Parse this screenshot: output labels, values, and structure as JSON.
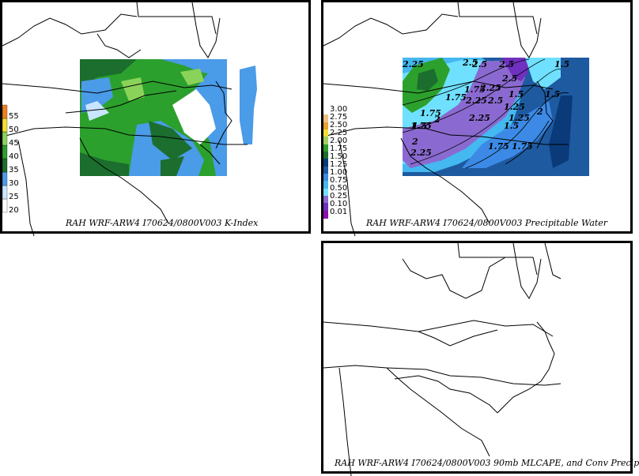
{
  "panels": [
    {
      "caption": "RAH WRF-ARW4 I70624/0800V003  K-Index",
      "legend": {
        "colors": [
          "#ffffff",
          "#c8e6ff",
          "#4a9be8",
          "#1b6e2d",
          "#2ca02c",
          "#8ad35a",
          "#f0e030",
          "#f08020"
        ],
        "labels": [
          "20",
          "25",
          "30",
          "35",
          "40",
          "45",
          "50",
          "55"
        ]
      }
    },
    {
      "caption": "RAH WRF-ARW4 I70624/0800V003  Precipitable Water",
      "legend": {
        "colors": [
          "#ffffff",
          "#f0c080",
          "#e8a030",
          "#f0e030",
          "#a0d060",
          "#2ca02c",
          "#1b6e2d",
          "#0a3a7a",
          "#1e5aa0",
          "#3c8ae6",
          "#44b8f0",
          "#6fe0ff",
          "#8a6ad0",
          "#7030c0",
          "#8a10b0"
        ],
        "labels": [
          "3.00",
          "2.75",
          "2.50",
          "2.25",
          "2.00",
          "1.75",
          "1.50",
          "1.25",
          "1.00",
          "0.75",
          "0.50",
          "0.25",
          "0.10",
          "0.01"
        ]
      },
      "contour_labels": [
        "2.25",
        "2.5",
        "2.5",
        "2.5",
        "2.25",
        "2.25",
        "2.5",
        "1.75",
        "2.25",
        "2",
        "1.75",
        "1.5",
        "1.25",
        "1.5",
        "1.75",
        "1.5",
        "1.25",
        "2",
        "1.75",
        "2",
        "2.25",
        "1.5",
        "1.5",
        "1.75",
        "1.75",
        "2.5"
      ]
    },
    {
      "caption": "RAH WRF-ARW4 I70624/0800V003  90mb MLCAPE, and Conv Precip"
    }
  ]
}
